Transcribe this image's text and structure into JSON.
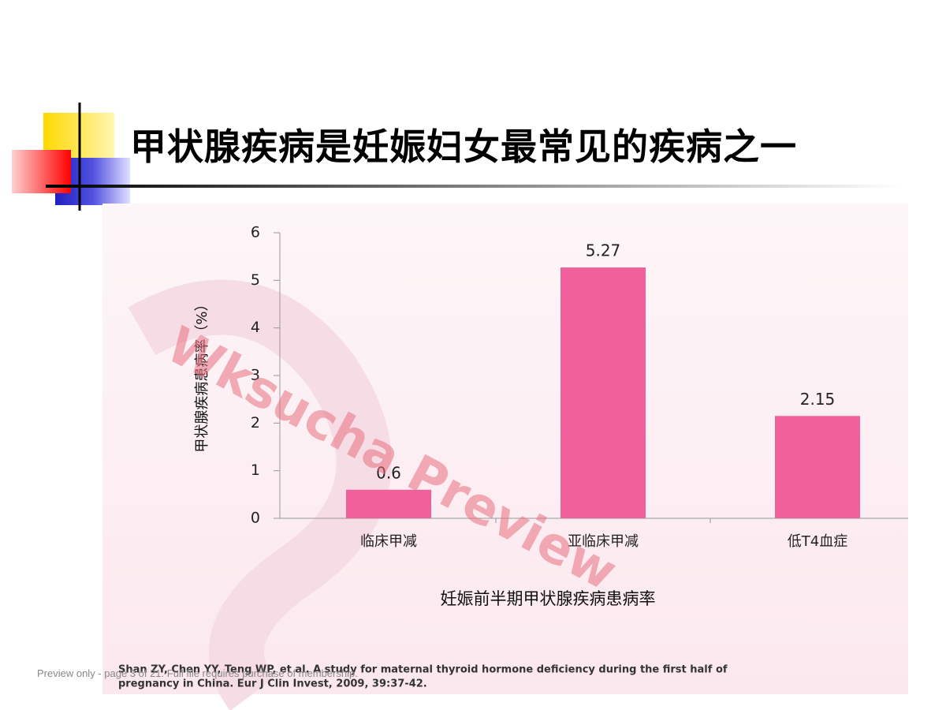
{
  "title": "甲状腺疾病是妊娠妇女最常见的疾病之一",
  "chart_data": {
    "type": "bar",
    "x_label": "妊娠前半期甲状腺疾病患病率",
    "y_label": "甲状腺疾病患病率（%）",
    "categories": [
      "临床甲减",
      "亚临床甲减",
      "低T4血症"
    ],
    "values": [
      0.6,
      5.27,
      2.15
    ],
    "color": "#f0609a",
    "ylim": [
      0,
      6
    ],
    "yticks": [
      0,
      1,
      2,
      3,
      4,
      5,
      6
    ]
  },
  "watermark": "Wksucha Preview",
  "citation": [
    "Shan ZY, Chen YY, Teng WP, et al. A study for maternal thyroid hormone deficiency during the first half of",
    "pregnancy in China. Eur J Clin Invest, 2009, 39:37-42."
  ],
  "footer": "Preview only - page 3 of 21. Full file requires purchase of membership."
}
